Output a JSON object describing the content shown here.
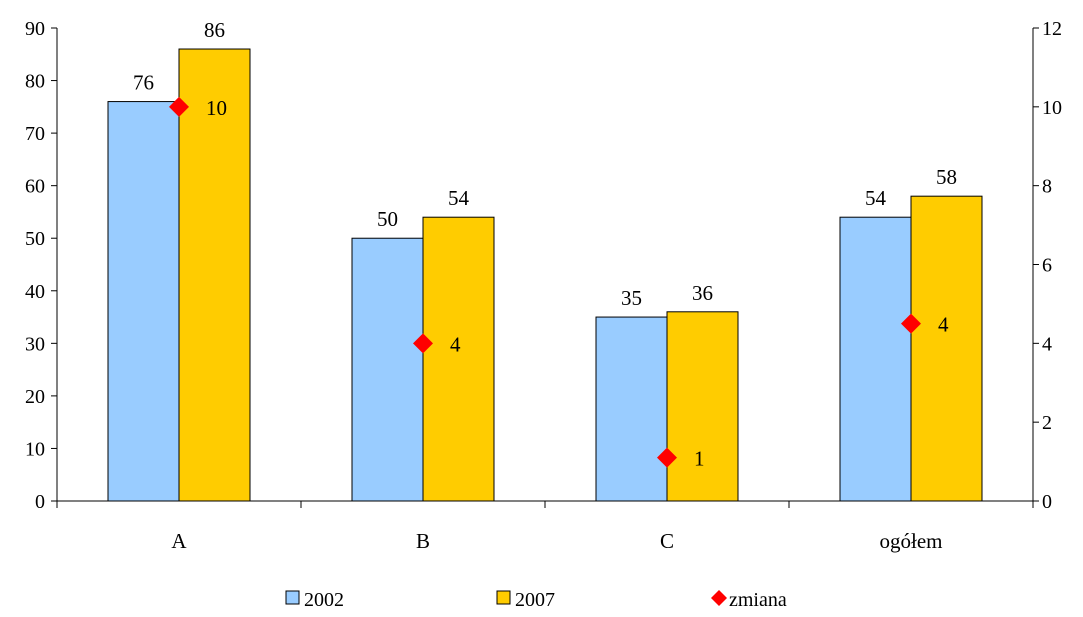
{
  "chart_data": {
    "type": "bar",
    "categories": [
      "A",
      "B",
      "C",
      "ogółem"
    ],
    "series": [
      {
        "name": "2002",
        "values": [
          76,
          50,
          35,
          54
        ],
        "color": "#99CCFF",
        "axis": "left"
      },
      {
        "name": "2007",
        "values": [
          86,
          54,
          36,
          58
        ],
        "color": "#FFCC00",
        "axis": "left"
      }
    ],
    "display_values": {
      "2002": [
        "76",
        "50",
        "35",
        "54"
      ],
      "2007": [
        "86",
        "54",
        "36",
        "58"
      ]
    },
    "change_series": {
      "name": "zmiana",
      "type": "scatter",
      "marker": "diamond",
      "color": "#FF0000",
      "axis": "right",
      "values": [
        10,
        4,
        1.1,
        4.5
      ],
      "labels": [
        "10",
        "4",
        "1",
        "4"
      ]
    },
    "y_left": {
      "min": 0,
      "max": 90,
      "step": 10,
      "ticks": [
        "0",
        "10",
        "20",
        "30",
        "40",
        "50",
        "60",
        "70",
        "80",
        "90"
      ]
    },
    "y_right": {
      "min": 0,
      "max": 12,
      "step": 2,
      "ticks": [
        "0",
        "2",
        "4",
        "6",
        "8",
        "10",
        "12"
      ]
    },
    "title": "",
    "xlabel": "",
    "ylabel": "",
    "grid": false,
    "legend_position": "bottom"
  }
}
